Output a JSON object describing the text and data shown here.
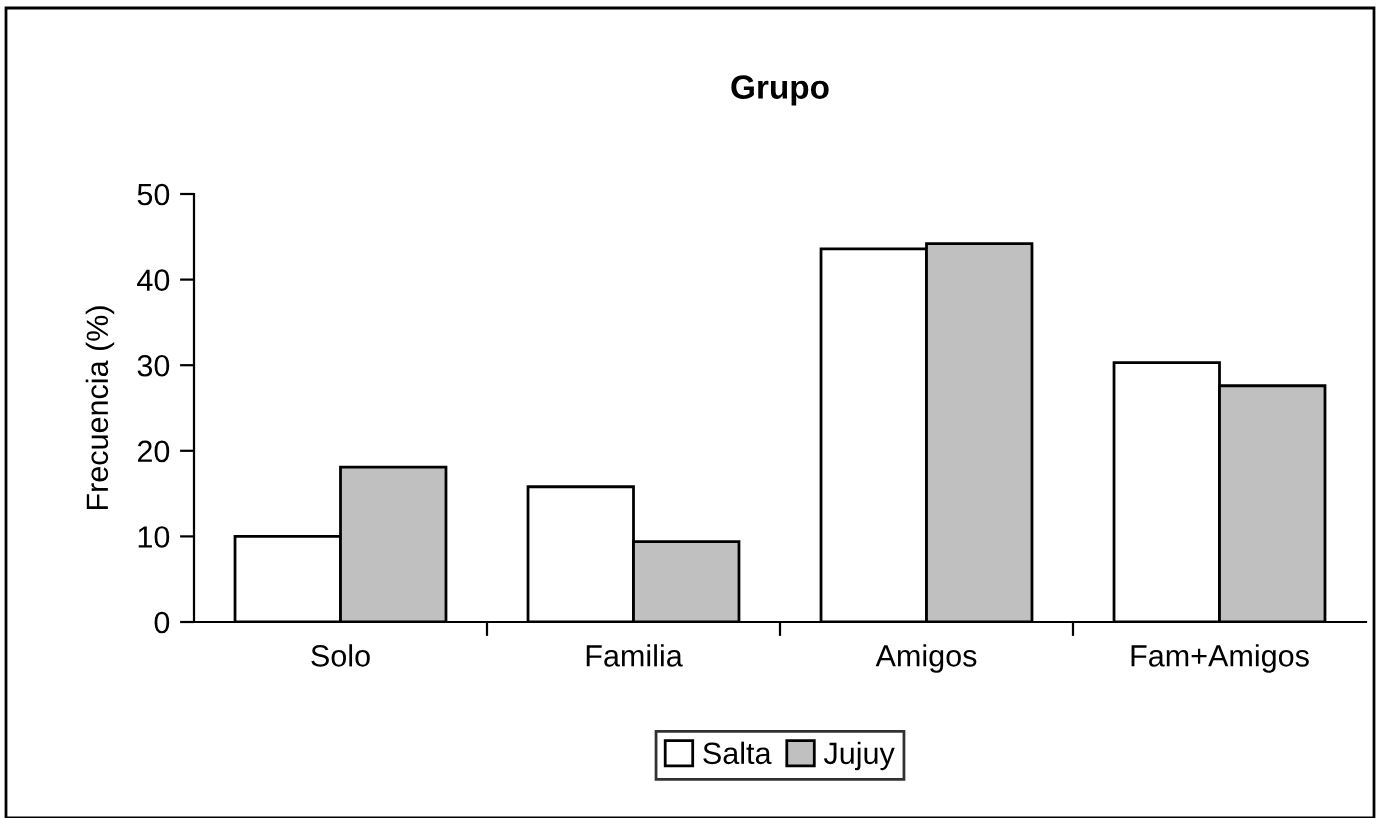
{
  "chart_data": {
    "type": "bar",
    "title": "Grupo",
    "ylabel": "Frecuencia (%)",
    "categories": [
      "Solo",
      "Familia",
      "Amigos",
      "Fam+Amigos"
    ],
    "series": [
      {
        "name": "Salta",
        "color": "#ffffff",
        "values": [
          10,
          15.8,
          43.6,
          30.3
        ]
      },
      {
        "name": "Jujuy",
        "color": "#c0c0c0",
        "values": [
          18.1,
          9.4,
          44.2,
          27.6
        ]
      }
    ],
    "ylim": [
      0,
      50
    ],
    "yticks": [
      0,
      10,
      20,
      30,
      40,
      50
    ],
    "grid": false,
    "legend": "bottom"
  }
}
